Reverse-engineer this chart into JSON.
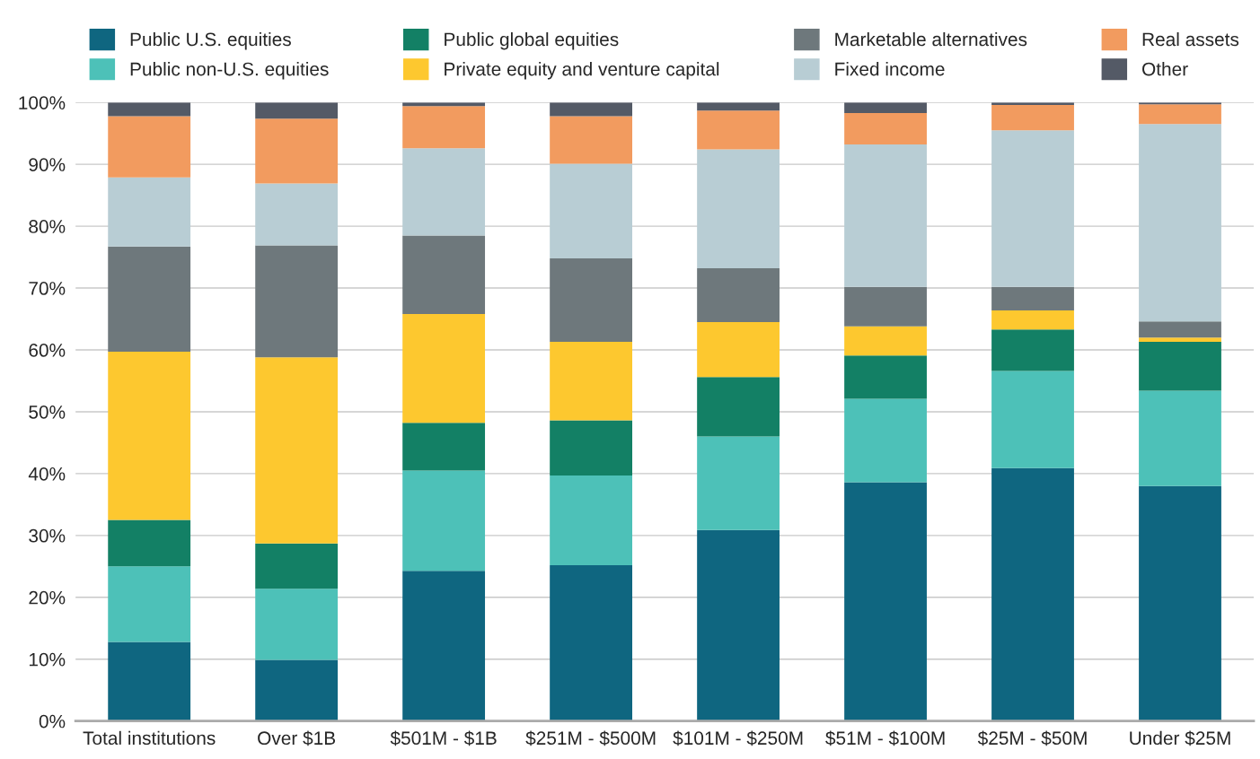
{
  "chart_data": {
    "type": "bar",
    "stacked": true,
    "legend": "top",
    "grid": "y",
    "categories": [
      "Total institutions",
      "Over $1B",
      "$501M - $1B",
      "$251M - $500M",
      "$101M - $250M",
      "$51M - $100M",
      "$25M - $50M",
      "Under $25M"
    ],
    "series": [
      {
        "name": "Public U.S. equities",
        "color": "#0f6680",
        "values": [
          12.8,
          9.9,
          24.3,
          25.2,
          30.9,
          38.6,
          40.9,
          38.0
        ]
      },
      {
        "name": "Public non-U.S. equities",
        "color": "#4dc1b8",
        "values": [
          12.2,
          11.5,
          16.2,
          14.5,
          15.1,
          13.5,
          15.7,
          15.4
        ]
      },
      {
        "name": "Public global equities",
        "color": "#138065",
        "values": [
          7.5,
          7.3,
          7.7,
          8.9,
          9.6,
          7.0,
          6.7,
          7.9
        ]
      },
      {
        "name": "Private equity and venture capital",
        "color": "#fdc82f",
        "values": [
          27.2,
          30.1,
          17.6,
          12.7,
          8.9,
          4.7,
          3.1,
          0.7
        ]
      },
      {
        "name": "Marketable alternatives",
        "color": "#6e787c",
        "values": [
          17.0,
          18.1,
          12.7,
          13.5,
          8.7,
          6.4,
          3.8,
          2.6
        ]
      },
      {
        "name": "Fixed income",
        "color": "#b8cdd4",
        "values": [
          11.2,
          10.0,
          14.1,
          15.3,
          19.2,
          23.0,
          25.3,
          31.9
        ]
      },
      {
        "name": "Real assets",
        "color": "#f29b5f",
        "values": [
          9.9,
          10.5,
          6.8,
          7.7,
          6.3,
          5.1,
          4.1,
          3.2
        ]
      },
      {
        "name": "Other",
        "color": "#545a66",
        "values": [
          2.2,
          2.6,
          0.6,
          2.2,
          1.3,
          1.7,
          0.4,
          0.3
        ]
      }
    ],
    "ylim": [
      0,
      100
    ],
    "yticks": [
      {
        "value": 0,
        "label": "0%"
      },
      {
        "value": 10,
        "label": "10%"
      },
      {
        "value": 20,
        "label": "20%"
      },
      {
        "value": 30,
        "label": "30%"
      },
      {
        "value": 40,
        "label": "40%"
      },
      {
        "value": 50,
        "label": "50%"
      },
      {
        "value": 60,
        "label": "60%"
      },
      {
        "value": 70,
        "label": "70%"
      },
      {
        "value": 80,
        "label": "80%"
      },
      {
        "value": 90,
        "label": "90%"
      },
      {
        "value": 100,
        "label": "100%"
      }
    ]
  }
}
